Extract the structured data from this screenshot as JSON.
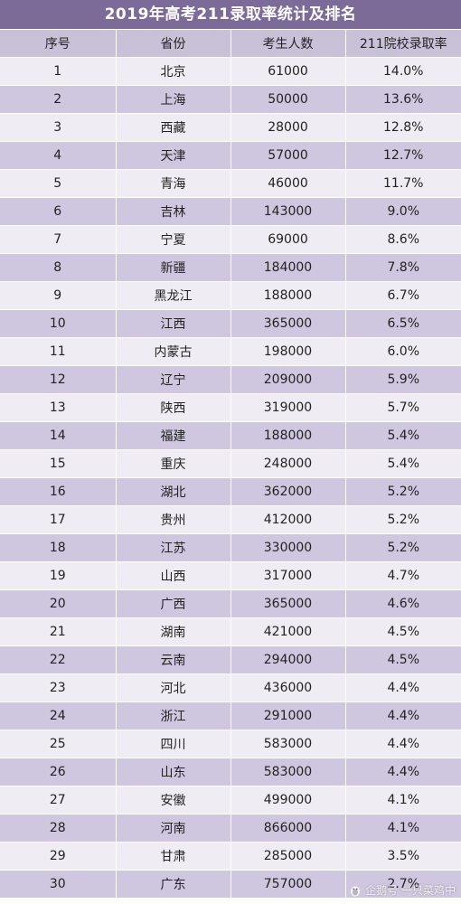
{
  "title": "2019年高考211录取率统计及排名",
  "columns": [
    "序号",
    "省份",
    "考生人数",
    "211院校录取率"
  ],
  "rows": [
    [
      "1",
      "北京",
      "61000",
      "14.0%"
    ],
    [
      "2",
      "上海",
      "50000",
      "13.6%"
    ],
    [
      "3",
      "西藏",
      "28000",
      "12.8%"
    ],
    [
      "4",
      "天津",
      "57000",
      "12.7%"
    ],
    [
      "5",
      "青海",
      "46000",
      "11.7%"
    ],
    [
      "6",
      "吉林",
      "143000",
      "9.0%"
    ],
    [
      "7",
      "宁夏",
      "69000",
      "8.6%"
    ],
    [
      "8",
      "新疆",
      "184000",
      "7.8%"
    ],
    [
      "9",
      "黑龙江",
      "188000",
      "6.7%"
    ],
    [
      "10",
      "江西",
      "365000",
      "6.5%"
    ],
    [
      "11",
      "内蒙古",
      "198000",
      "6.0%"
    ],
    [
      "12",
      "辽宁",
      "209000",
      "5.9%"
    ],
    [
      "13",
      "陕西",
      "319000",
      "5.7%"
    ],
    [
      "14",
      "福建",
      "188000",
      "5.4%"
    ],
    [
      "15",
      "重庆",
      "248000",
      "5.4%"
    ],
    [
      "16",
      "湖北",
      "362000",
      "5.2%"
    ],
    [
      "17",
      "贵州",
      "412000",
      "5.2%"
    ],
    [
      "18",
      "江苏",
      "330000",
      "5.2%"
    ],
    [
      "19",
      "山西",
      "317000",
      "4.7%"
    ],
    [
      "20",
      "广西",
      "365000",
      "4.6%"
    ],
    [
      "21",
      "湖南",
      "421000",
      "4.5%"
    ],
    [
      "22",
      "云南",
      "294000",
      "4.5%"
    ],
    [
      "23",
      "河北",
      "436000",
      "4.4%"
    ],
    [
      "24",
      "浙江",
      "291000",
      "4.4%"
    ],
    [
      "25",
      "四川",
      "583000",
      "4.4%"
    ],
    [
      "26",
      "山东",
      "583000",
      "4.4%"
    ],
    [
      "27",
      "安徽",
      "499000",
      "4.1%"
    ],
    [
      "28",
      "河南",
      "866000",
      "4.1%"
    ],
    [
      "29",
      "甘肃",
      "285000",
      "3.5%"
    ],
    [
      "30",
      "广东",
      "757000",
      "2.7%"
    ]
  ],
  "watermark": {
    "text": "企鹅号 一只菜鸡中",
    "icon": "penguin-icon"
  },
  "colors": {
    "title_bg": "#7c6a99",
    "header_bg": "#c9c1d8",
    "row_light": "#efedf3",
    "row_dark": "#cfc7df"
  }
}
